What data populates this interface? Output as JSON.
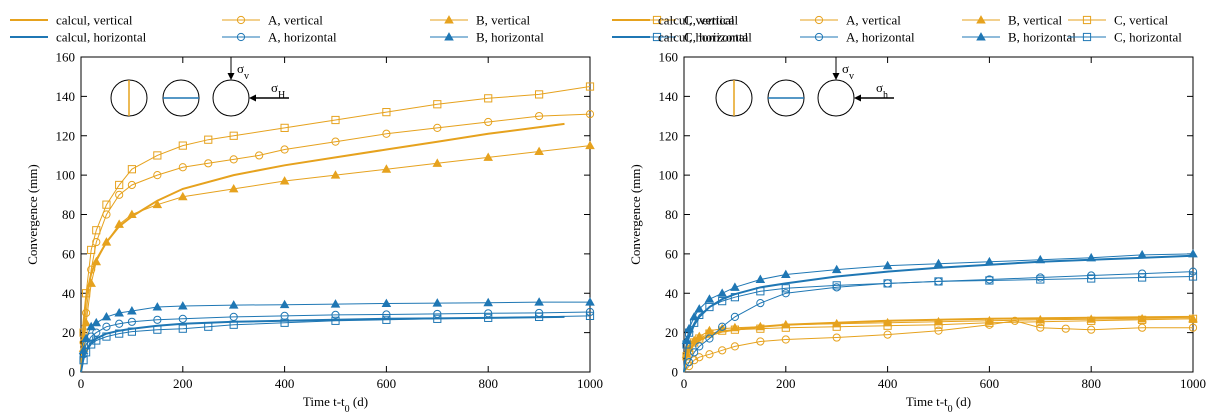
{
  "colors": {
    "vertical": "#e6a21e",
    "horizontal": "#1f77b4"
  },
  "legend": [
    {
      "key": "calcul_v",
      "label": "calcul, vertical",
      "marker": "none",
      "orient": "vertical"
    },
    {
      "key": "A_v",
      "label": "A, vertical",
      "marker": "circle",
      "orient": "vertical"
    },
    {
      "key": "B_v",
      "label": "B, vertical",
      "marker": "triangle",
      "orient": "vertical"
    },
    {
      "key": "C_v",
      "label": "C, vertical",
      "marker": "square",
      "orient": "vertical"
    },
    {
      "key": "calcul_h",
      "label": "calcul, horizontal",
      "marker": "none",
      "orient": "horizontal"
    },
    {
      "key": "A_h",
      "label": "A, horizontal",
      "marker": "circle",
      "orient": "horizontal"
    },
    {
      "key": "B_h",
      "label": "B, horizontal",
      "marker": "triangle",
      "orient": "horizontal"
    },
    {
      "key": "C_h",
      "label": "C, horizontal",
      "marker": "square",
      "orient": "horizontal"
    }
  ],
  "chart_data": [
    {
      "type": "line",
      "ylabel": "Convergence (mm)",
      "xlabel": "Time t-t",
      "xlabel_sub": "0",
      "xlabel_unit": " (d)",
      "xlim": [
        0,
        1000
      ],
      "ylim": [
        0,
        160
      ],
      "xticks": [
        "0",
        "200",
        "400",
        "600",
        "800",
        "1000"
      ],
      "yticks": [
        "0",
        "20",
        "40",
        "60",
        "80",
        "100",
        "120",
        "140",
        "160"
      ],
      "stress_v": "σ",
      "stress_v_sub": "v",
      "stress_h": "σ",
      "stress_h_sub": "H",
      "series": [
        {
          "name": "calcul, vertical",
          "key": "calcul_v",
          "x": [
            0,
            5,
            10,
            20,
            30,
            50,
            75,
            100,
            150,
            200,
            300,
            400,
            500,
            600,
            700,
            800,
            950
          ],
          "y": [
            0,
            25,
            38,
            50,
            57,
            66,
            74,
            79,
            87,
            93,
            100,
            105,
            109,
            113,
            117,
            121,
            126
          ]
        },
        {
          "name": "calcul, horizontal",
          "key": "calcul_h",
          "x": [
            0,
            5,
            10,
            20,
            30,
            50,
            75,
            100,
            150,
            200,
            300,
            400,
            500,
            600,
            700,
            800,
            950
          ],
          "y": [
            0,
            7,
            11,
            15,
            17,
            19.5,
            21,
            22,
            23.5,
            24.5,
            25.5,
            26,
            26.5,
            27,
            27.2,
            27.5,
            28
          ]
        },
        {
          "name": "A, vertical",
          "key": "A_v",
          "x": [
            0,
            5,
            10,
            20,
            30,
            50,
            75,
            100,
            150,
            200,
            250,
            300,
            350,
            400,
            500,
            600,
            700,
            800,
            900,
            1000
          ],
          "y": [
            0,
            15,
            30,
            52,
            66,
            80,
            90,
            95,
            100,
            104,
            106,
            108,
            110,
            113,
            117,
            121,
            124,
            127,
            130,
            131
          ]
        },
        {
          "name": "B, vertical",
          "key": "B_v",
          "x": [
            0,
            5,
            10,
            20,
            30,
            50,
            75,
            100,
            150,
            200,
            300,
            400,
            500,
            600,
            700,
            800,
            900,
            1000
          ],
          "y": [
            0,
            12,
            25,
            45,
            56,
            66,
            75,
            80,
            85,
            89,
            93,
            97,
            100,
            103,
            106,
            109,
            112,
            115
          ]
        },
        {
          "name": "C, vertical",
          "key": "C_v",
          "x": [
            0,
            5,
            10,
            20,
            30,
            50,
            75,
            100,
            150,
            200,
            250,
            300,
            400,
            500,
            600,
            700,
            800,
            900,
            1000
          ],
          "y": [
            0,
            20,
            40,
            62,
            72,
            85,
            95,
            103,
            110,
            115,
            118,
            120,
            124,
            128,
            132,
            136,
            139,
            141,
            145
          ]
        },
        {
          "name": "A, horizontal",
          "key": "A_h",
          "x": [
            0,
            5,
            10,
            20,
            30,
            50,
            75,
            100,
            150,
            200,
            300,
            400,
            500,
            600,
            700,
            800,
            900,
            1000
          ],
          "y": [
            0,
            9,
            14,
            18,
            20,
            23,
            24.5,
            25.5,
            26.5,
            27,
            28,
            28.5,
            29,
            29.2,
            29.5,
            29.8,
            30,
            30.5
          ]
        },
        {
          "name": "B, horizontal",
          "key": "B_h",
          "x": [
            0,
            5,
            10,
            20,
            30,
            50,
            75,
            100,
            150,
            200,
            300,
            400,
            500,
            600,
            700,
            800,
            900,
            1000
          ],
          "y": [
            0,
            11,
            17,
            23,
            25,
            28,
            30,
            31,
            33,
            33.5,
            34,
            34.2,
            34.5,
            34.8,
            35,
            35.2,
            35.5,
            35.5
          ]
        },
        {
          "name": "C, horizontal",
          "key": "C_h",
          "x": [
            0,
            5,
            10,
            20,
            30,
            50,
            75,
            100,
            150,
            200,
            250,
            300,
            400,
            500,
            600,
            700,
            800,
            900,
            1000
          ],
          "y": [
            0,
            6,
            10,
            14,
            16,
            18,
            19.5,
            20.5,
            21.5,
            22,
            23,
            24,
            25,
            26,
            26.5,
            27,
            27.5,
            28,
            28.5
          ]
        }
      ]
    },
    {
      "type": "line",
      "ylabel": "Convergence (mm)",
      "xlabel": "Time t-t",
      "xlabel_sub": "0",
      "xlabel_unit": " (d)",
      "xlim": [
        0,
        1000
      ],
      "ylim": [
        0,
        160
      ],
      "xticks": [
        "0",
        "200",
        "400",
        "600",
        "800",
        "1000"
      ],
      "yticks": [
        "0",
        "20",
        "40",
        "60",
        "80",
        "100",
        "120",
        "140",
        "160"
      ],
      "stress_v": "σ",
      "stress_v_sub": "v",
      "stress_h": "σ",
      "stress_h_sub": "h",
      "series": [
        {
          "name": "calcul, vertical",
          "key": "calcul_v",
          "x": [
            0,
            5,
            10,
            20,
            30,
            50,
            75,
            100,
            150,
            200,
            300,
            400,
            500,
            600,
            700,
            800,
            1000
          ],
          "y": [
            0,
            8,
            11,
            14,
            16,
            18.5,
            20.5,
            21.5,
            23,
            24,
            25,
            26,
            26.5,
            27,
            27.3,
            27.6,
            28
          ]
        },
        {
          "name": "calcul, horizontal",
          "key": "calcul_h",
          "x": [
            0,
            5,
            10,
            20,
            30,
            50,
            75,
            100,
            150,
            200,
            300,
            400,
            500,
            600,
            700,
            800,
            1000
          ],
          "y": [
            0,
            13,
            18,
            24,
            28,
            33,
            37,
            39.5,
            43,
            45,
            48.5,
            51,
            53,
            54.5,
            56,
            57,
            59
          ]
        },
        {
          "name": "A, vertical",
          "key": "A_v",
          "x": [
            0,
            10,
            20,
            30,
            50,
            75,
            100,
            150,
            200,
            300,
            400,
            500,
            600,
            650,
            700,
            750,
            800,
            900,
            1000
          ],
          "y": [
            0,
            3,
            6,
            7.5,
            9,
            11,
            13,
            15.5,
            16.5,
            17.5,
            19,
            21,
            24,
            26,
            22.5,
            22,
            21.5,
            22.5,
            22.5
          ]
        },
        {
          "name": "B, vertical",
          "key": "B_v",
          "x": [
            0,
            5,
            10,
            20,
            30,
            50,
            75,
            100,
            150,
            200,
            300,
            400,
            500,
            600,
            700,
            800,
            900,
            1000
          ],
          "y": [
            0,
            9,
            12,
            16,
            18,
            21,
            22,
            22.5,
            23,
            24,
            24.5,
            25,
            25.5,
            26,
            26.5,
            26.8,
            27,
            27
          ]
        },
        {
          "name": "C, vertical",
          "key": "C_v",
          "x": [
            0,
            5,
            10,
            20,
            30,
            50,
            75,
            100,
            150,
            200,
            300,
            400,
            500,
            600,
            700,
            800,
            900,
            1000
          ],
          "y": [
            0,
            8,
            11,
            15,
            17,
            19.5,
            21,
            21.5,
            22,
            22.5,
            23,
            23.5,
            24,
            25,
            25.5,
            26,
            26.5,
            27
          ]
        },
        {
          "name": "A, horizontal",
          "key": "A_h",
          "x": [
            0,
            10,
            20,
            30,
            50,
            75,
            100,
            150,
            200,
            300,
            400,
            500,
            600,
            700,
            800,
            900,
            1000
          ],
          "y": [
            0,
            5,
            10,
            13,
            17,
            23,
            28,
            35,
            40,
            43,
            45,
            46,
            47,
            48,
            49,
            50,
            51
          ]
        },
        {
          "name": "B, horizontal",
          "key": "B_h",
          "x": [
            0,
            5,
            10,
            20,
            30,
            50,
            75,
            100,
            150,
            200,
            300,
            400,
            500,
            600,
            700,
            800,
            900,
            1000
          ],
          "y": [
            0,
            16,
            22,
            28,
            32,
            37,
            40,
            43,
            47,
            49.5,
            52,
            54,
            55,
            56,
            57,
            58,
            59.5,
            60
          ]
        },
        {
          "name": "C, horizontal",
          "key": "C_h",
          "x": [
            0,
            5,
            10,
            20,
            30,
            50,
            75,
            100,
            150,
            200,
            300,
            400,
            500,
            600,
            700,
            800,
            900,
            1000
          ],
          "y": [
            0,
            14,
            20,
            25,
            29,
            33,
            36,
            38,
            41,
            42.5,
            44,
            45,
            46,
            46.5,
            47,
            47.5,
            48,
            48.5
          ]
        }
      ]
    }
  ]
}
